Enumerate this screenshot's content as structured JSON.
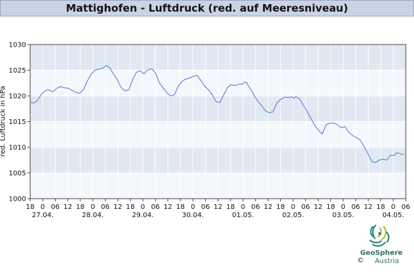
{
  "header": {
    "title": "Mattighofen - Luftdruck (red. auf Meeresniveau)"
  },
  "chart_data": {
    "type": "line",
    "title": "Mattighofen - Luftdruck (red. auf Meeresniveau)",
    "ylabel": "red. Luftdruck in hPa",
    "xlabel": "",
    "ylim": [
      1000,
      1030
    ],
    "yticks": [
      "1000",
      "1005",
      "1010",
      "1015",
      "1020",
      "1025",
      "1030"
    ],
    "x_unit": "hours since 26.04. 18:00",
    "xlim": [
      0,
      198
    ],
    "hour_ticks": [
      "18",
      "0",
      "06",
      "12",
      "18",
      "0",
      "06",
      "12",
      "18",
      "0",
      "06",
      "12",
      "18",
      "0",
      "06",
      "12",
      "18",
      "0",
      "06",
      "12",
      "18",
      "0",
      "06",
      "12",
      "18",
      "0",
      "06",
      "12",
      "18",
      "0",
      "06"
    ],
    "day_labels": [
      "27.04.",
      "28.04.",
      "29.04.",
      "30.04.",
      "01.05.",
      "02.05.",
      "03.05.",
      "04.05."
    ],
    "grid": true,
    "series": [
      {
        "name": "",
        "color": "#5a7fd9",
        "x": [
          0,
          2,
          4,
          6,
          8,
          9,
          10,
          12,
          14,
          16,
          18,
          20,
          22,
          24,
          26,
          28,
          30,
          32,
          34,
          35,
          36,
          38,
          39,
          40,
          42,
          44,
          46,
          47,
          48,
          50,
          52,
          54,
          56,
          58,
          60,
          61,
          62,
          64,
          66,
          67,
          68,
          70,
          72,
          74,
          76,
          78,
          80,
          82,
          84,
          86,
          88,
          90,
          92,
          94,
          96,
          98,
          100,
          102,
          104,
          106,
          108,
          110,
          112,
          113,
          114,
          116,
          117,
          118,
          120,
          122,
          124,
          126,
          128,
          130,
          132,
          134,
          136,
          138,
          139,
          140,
          142,
          144,
          146,
          148,
          150,
          152,
          154,
          156,
          158,
          160,
          162,
          164,
          166,
          168,
          170,
          172,
          174,
          176,
          178,
          180,
          182,
          184,
          186,
          188,
          190,
          192,
          193,
          194,
          196,
          197
        ],
        "y": [
          1018.8,
          1018.6,
          1019.2,
          1020.4,
          1021.0,
          1021.2,
          1021.1,
          1020.8,
          1021.5,
          1021.8,
          1021.6,
          1021.5,
          1021.1,
          1020.7,
          1020.5,
          1021.2,
          1022.8,
          1024.2,
          1024.9,
          1025.1,
          1025.2,
          1025.4,
          1025.6,
          1025.9,
          1025.5,
          1024.2,
          1023.1,
          1022.3,
          1021.6,
          1021.0,
          1021.2,
          1023.2,
          1024.6,
          1024.9,
          1024.3,
          1024.8,
          1025.0,
          1025.3,
          1024.5,
          1023.6,
          1022.6,
          1021.6,
          1020.6,
          1020.0,
          1020.2,
          1021.9,
          1022.8,
          1023.3,
          1023.5,
          1023.8,
          1024.0,
          1023.0,
          1021.9,
          1021.2,
          1020.2,
          1018.9,
          1018.7,
          1020.2,
          1021.6,
          1022.2,
          1022.0,
          1022.3,
          1022.3,
          1022.7,
          1022.6,
          1021.4,
          1020.9,
          1020.1,
          1019.0,
          1018.1,
          1017.1,
          1016.7,
          1016.9,
          1018.6,
          1019.3,
          1019.7,
          1019.7,
          1019.8,
          1019.5,
          1019.9,
          1019.4,
          1018.2,
          1017.0,
          1015.6,
          1014.3,
          1013.3,
          1012.6,
          1014.4,
          1014.7,
          1014.7,
          1014.4,
          1013.8,
          1014.0,
          1012.9,
          1012.3,
          1011.9,
          1011.4,
          1010.2,
          1008.8,
          1007.3,
          1007.0,
          1007.5,
          1007.7,
          1007.5,
          1008.5,
          1008.4,
          1008.9,
          1008.9,
          1008.6,
          1008.6
        ]
      }
    ]
  },
  "logo": {
    "name": "GeoSphere",
    "country": "Austria",
    "copyright": "©"
  }
}
